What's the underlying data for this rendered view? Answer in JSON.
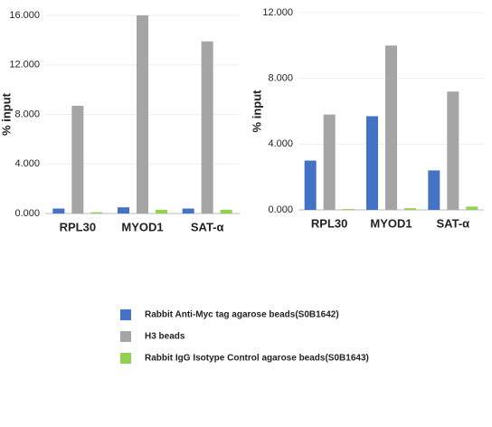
{
  "chart_data": [
    {
      "type": "bar",
      "y_label": "% input",
      "categories": [
        "RPL30",
        "MYOD1",
        "SAT-α"
      ],
      "series": [
        {
          "name": "Rabbit Anti-Myc tag agarose beads(S0B1642)",
          "color": "#4472c4",
          "values": [
            0.4,
            0.5,
            0.4
          ]
        },
        {
          "name": "H3 beads",
          "color": "#a5a5a5",
          "values": [
            8.7,
            16.0,
            13.9
          ]
        },
        {
          "name": "Rabbit IgG Isotype Control agarose beads(S0B1643)",
          "color": "#92d050",
          "values": [
            0.1,
            0.3,
            0.3
          ]
        }
      ],
      "ylim": [
        0,
        16
      ],
      "yticks": [
        {
          "value": 0,
          "label": "0.000"
        },
        {
          "value": 4,
          "label": "4.000"
        },
        {
          "value": 8,
          "label": "8.000"
        },
        {
          "value": 12,
          "label": "12.000"
        },
        {
          "value": 16,
          "label": "16.000"
        }
      ]
    },
    {
      "type": "bar",
      "y_label": "% input",
      "categories": [
        "RPL30",
        "MYOD1",
        "SAT-α"
      ],
      "series": [
        {
          "color": "#4472c4",
          "values": [
            3.0,
            5.7,
            2.4
          ]
        },
        {
          "color": "#a5a5a5",
          "values": [
            5.8,
            10.0,
            7.2
          ]
        },
        {
          "color": "#92d050",
          "values": [
            0.05,
            0.1,
            0.2
          ]
        }
      ],
      "ylim": [
        0,
        12
      ],
      "yticks": [
        {
          "value": 0,
          "label": "0.000"
        },
        {
          "value": 4,
          "label": "4.000"
        },
        {
          "value": 8,
          "label": "8.000"
        },
        {
          "value": 12,
          "label": "12.000"
        }
      ]
    }
  ]
}
